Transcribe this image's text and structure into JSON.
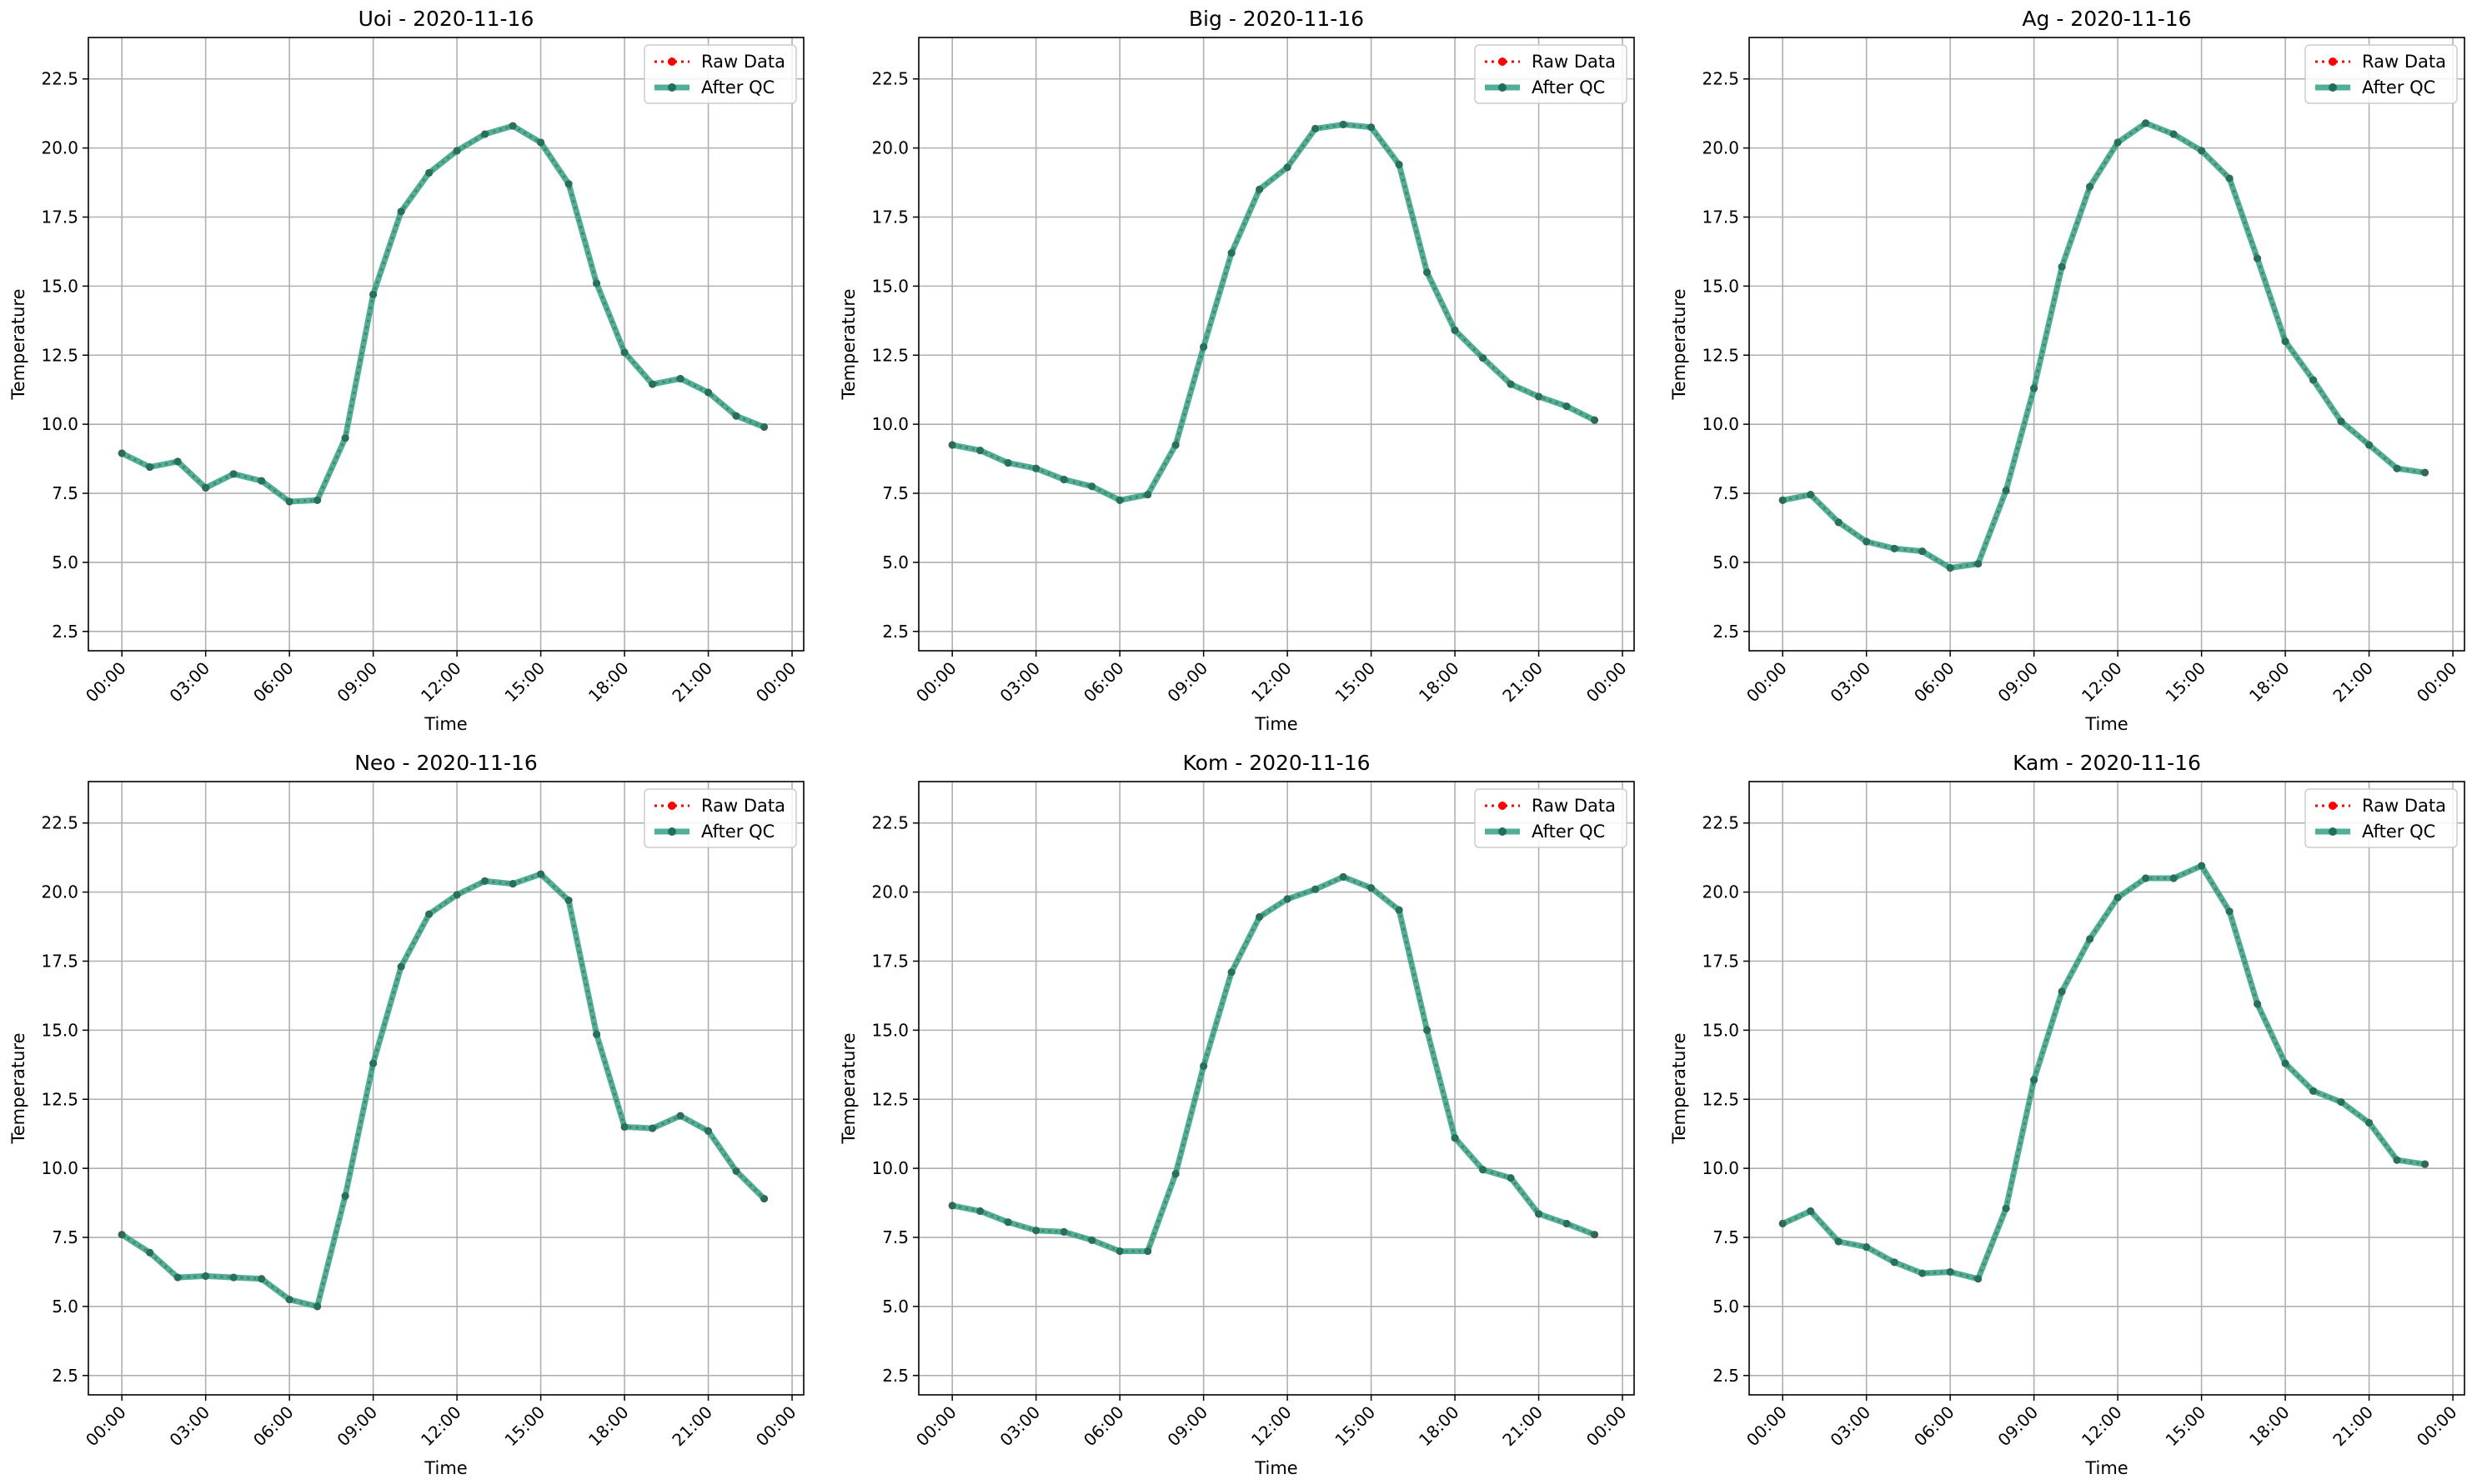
{
  "chart_data": [
    {
      "type": "line",
      "title": "Uoi - 2020-11-16",
      "xlabel": "Time",
      "ylabel": "Temperature",
      "ylim": [
        1.8,
        24.0
      ],
      "xlim": [
        "2020-11-15T22:48",
        "2020-11-17T00:25"
      ],
      "x_ticks": [
        "00:00",
        "03:00",
        "06:00",
        "09:00",
        "12:00",
        "15:00",
        "18:00",
        "21:00",
        "00:00"
      ],
      "y_ticks": [
        "2.5",
        "5.0",
        "7.5",
        "10.0",
        "12.5",
        "15.0",
        "17.5",
        "20.0",
        "22.5"
      ],
      "grid": true,
      "legend": "top-right",
      "x": [
        "00:00",
        "01:00",
        "02:00",
        "03:00",
        "04:00",
        "05:00",
        "06:00",
        "07:00",
        "08:00",
        "09:00",
        "10:00",
        "11:00",
        "12:00",
        "13:00",
        "14:00",
        "15:00",
        "16:00",
        "17:00",
        "18:00",
        "19:00",
        "20:00",
        "21:00",
        "22:00",
        "23:00"
      ],
      "series": [
        {
          "name": "Raw Data",
          "color": "#ff0000",
          "values": [
            8.95,
            8.45,
            8.65,
            7.7,
            8.2,
            7.95,
            7.2,
            7.25,
            9.5,
            14.7,
            17.7,
            19.1,
            19.9,
            20.5,
            20.8,
            20.2,
            18.7,
            15.1,
            12.6,
            11.45,
            11.65,
            11.15,
            10.3,
            9.9
          ]
        },
        {
          "name": "After QC",
          "color": "#2a9d7f",
          "values": [
            8.95,
            8.45,
            8.65,
            7.7,
            8.2,
            7.95,
            7.2,
            7.25,
            9.5,
            14.7,
            17.7,
            19.1,
            19.9,
            20.5,
            20.8,
            20.2,
            18.7,
            15.1,
            12.6,
            11.45,
            11.65,
            11.15,
            10.3,
            9.9
          ]
        }
      ]
    },
    {
      "type": "line",
      "title": "Big - 2020-11-16",
      "xlabel": "Time",
      "ylabel": "Temperature",
      "ylim": [
        1.8,
        24.0
      ],
      "xlim": [
        "2020-11-15T22:48",
        "2020-11-17T00:25"
      ],
      "x_ticks": [
        "00:00",
        "03:00",
        "06:00",
        "09:00",
        "12:00",
        "15:00",
        "18:00",
        "21:00",
        "00:00"
      ],
      "y_ticks": [
        "2.5",
        "5.0",
        "7.5",
        "10.0",
        "12.5",
        "15.0",
        "17.5",
        "20.0",
        "22.5"
      ],
      "grid": true,
      "legend": "top-right",
      "x": [
        "00:00",
        "01:00",
        "02:00",
        "03:00",
        "04:00",
        "05:00",
        "06:00",
        "07:00",
        "08:00",
        "09:00",
        "10:00",
        "11:00",
        "12:00",
        "13:00",
        "14:00",
        "15:00",
        "16:00",
        "17:00",
        "18:00",
        "19:00",
        "20:00",
        "21:00",
        "22:00",
        "23:00"
      ],
      "series": [
        {
          "name": "Raw Data",
          "color": "#ff0000",
          "values": [
            9.25,
            9.05,
            8.6,
            8.4,
            8.0,
            7.75,
            7.25,
            7.45,
            9.25,
            12.8,
            16.2,
            18.5,
            19.3,
            20.7,
            20.85,
            20.75,
            19.4,
            15.5,
            13.4,
            12.4,
            11.45,
            11.0,
            10.65,
            10.15
          ]
        },
        {
          "name": "After QC",
          "color": "#2a9d7f",
          "values": [
            9.25,
            9.05,
            8.6,
            8.4,
            8.0,
            7.75,
            7.25,
            7.45,
            9.25,
            12.8,
            16.2,
            18.5,
            19.3,
            20.7,
            20.85,
            20.75,
            19.4,
            15.5,
            13.4,
            12.4,
            11.45,
            11.0,
            10.65,
            10.15
          ]
        }
      ]
    },
    {
      "type": "line",
      "title": "Ag - 2020-11-16",
      "xlabel": "Time",
      "ylabel": "Temperature",
      "ylim": [
        1.8,
        24.0
      ],
      "xlim": [
        "2020-11-15T22:48",
        "2020-11-17T00:25"
      ],
      "x_ticks": [
        "00:00",
        "03:00",
        "06:00",
        "09:00",
        "12:00",
        "15:00",
        "18:00",
        "21:00",
        "00:00"
      ],
      "y_ticks": [
        "2.5",
        "5.0",
        "7.5",
        "10.0",
        "12.5",
        "15.0",
        "17.5",
        "20.0",
        "22.5"
      ],
      "grid": true,
      "legend": "top-right",
      "x": [
        "00:00",
        "01:00",
        "02:00",
        "03:00",
        "04:00",
        "05:00",
        "06:00",
        "07:00",
        "08:00",
        "09:00",
        "10:00",
        "11:00",
        "12:00",
        "13:00",
        "14:00",
        "15:00",
        "16:00",
        "17:00",
        "18:00",
        "19:00",
        "20:00",
        "21:00",
        "22:00",
        "23:00"
      ],
      "series": [
        {
          "name": "Raw Data",
          "color": "#ff0000",
          "values": [
            7.25,
            7.45,
            6.45,
            5.75,
            5.5,
            5.4,
            4.8,
            4.95,
            7.6,
            11.3,
            15.7,
            18.6,
            20.2,
            20.9,
            20.5,
            19.9,
            18.9,
            16.0,
            13.0,
            11.6,
            10.1,
            9.25,
            8.4,
            8.25
          ]
        },
        {
          "name": "After QC",
          "color": "#2a9d7f",
          "values": [
            7.25,
            7.45,
            6.45,
            5.75,
            5.5,
            5.4,
            4.8,
            4.95,
            7.6,
            11.3,
            15.7,
            18.6,
            20.2,
            20.9,
            20.5,
            19.9,
            18.9,
            16.0,
            13.0,
            11.6,
            10.1,
            9.25,
            8.4,
            8.25
          ]
        }
      ]
    },
    {
      "type": "line",
      "title": "Neo - 2020-11-16",
      "xlabel": "Time",
      "ylabel": "Temperature",
      "ylim": [
        1.8,
        24.0
      ],
      "xlim": [
        "2020-11-15T22:48",
        "2020-11-17T00:25"
      ],
      "x_ticks": [
        "00:00",
        "03:00",
        "06:00",
        "09:00",
        "12:00",
        "15:00",
        "18:00",
        "21:00",
        "00:00"
      ],
      "y_ticks": [
        "2.5",
        "5.0",
        "7.5",
        "10.0",
        "12.5",
        "15.0",
        "17.5",
        "20.0",
        "22.5"
      ],
      "grid": true,
      "legend": "top-right",
      "x": [
        "00:00",
        "01:00",
        "02:00",
        "03:00",
        "04:00",
        "05:00",
        "06:00",
        "07:00",
        "08:00",
        "09:00",
        "10:00",
        "11:00",
        "12:00",
        "13:00",
        "14:00",
        "15:00",
        "16:00",
        "17:00",
        "18:00",
        "19:00",
        "20:00",
        "21:00",
        "22:00",
        "23:00"
      ],
      "series": [
        {
          "name": "Raw Data",
          "color": "#ff0000",
          "values": [
            7.6,
            6.95,
            6.05,
            6.1,
            6.05,
            6.0,
            5.25,
            5.0,
            9.0,
            13.8,
            17.3,
            19.2,
            19.9,
            20.4,
            20.3,
            20.65,
            19.7,
            14.85,
            11.5,
            11.45,
            11.9,
            11.35,
            9.9,
            8.9
          ]
        },
        {
          "name": "After QC",
          "color": "#2a9d7f",
          "values": [
            7.6,
            6.95,
            6.05,
            6.1,
            6.05,
            6.0,
            5.25,
            5.0,
            9.0,
            13.8,
            17.3,
            19.2,
            19.9,
            20.4,
            20.3,
            20.65,
            19.7,
            14.85,
            11.5,
            11.45,
            11.9,
            11.35,
            9.9,
            8.9
          ]
        }
      ]
    },
    {
      "type": "line",
      "title": "Kom - 2020-11-16",
      "xlabel": "Time",
      "ylabel": "Temperature",
      "ylim": [
        1.8,
        24.0
      ],
      "xlim": [
        "2020-11-15T22:48",
        "2020-11-17T00:25"
      ],
      "x_ticks": [
        "00:00",
        "03:00",
        "06:00",
        "09:00",
        "12:00",
        "15:00",
        "18:00",
        "21:00",
        "00:00"
      ],
      "y_ticks": [
        "2.5",
        "5.0",
        "7.5",
        "10.0",
        "12.5",
        "15.0",
        "17.5",
        "20.0",
        "22.5"
      ],
      "grid": true,
      "legend": "top-right",
      "x": [
        "00:00",
        "01:00",
        "02:00",
        "03:00",
        "04:00",
        "05:00",
        "06:00",
        "07:00",
        "08:00",
        "09:00",
        "10:00",
        "11:00",
        "12:00",
        "13:00",
        "14:00",
        "15:00",
        "16:00",
        "17:00",
        "18:00",
        "19:00",
        "20:00",
        "21:00",
        "22:00",
        "23:00"
      ],
      "series": [
        {
          "name": "Raw Data",
          "color": "#ff0000",
          "values": [
            8.65,
            8.45,
            8.05,
            7.75,
            7.7,
            7.4,
            7.0,
            7.0,
            9.8,
            13.7,
            17.1,
            19.1,
            19.75,
            20.1,
            20.55,
            20.15,
            19.35,
            15.0,
            11.1,
            9.95,
            9.65,
            8.35,
            8.0,
            7.6
          ]
        },
        {
          "name": "After QC",
          "color": "#2a9d7f",
          "values": [
            8.65,
            8.45,
            8.05,
            7.75,
            7.7,
            7.4,
            7.0,
            7.0,
            9.8,
            13.7,
            17.1,
            19.1,
            19.75,
            20.1,
            20.55,
            20.15,
            19.35,
            15.0,
            11.1,
            9.95,
            9.65,
            8.35,
            8.0,
            7.6
          ]
        }
      ]
    },
    {
      "type": "line",
      "title": "Kam - 2020-11-16",
      "xlabel": "Time",
      "ylabel": "Temperature",
      "ylim": [
        1.8,
        24.0
      ],
      "xlim": [
        "2020-11-15T22:48",
        "2020-11-17T00:25"
      ],
      "x_ticks": [
        "00:00",
        "03:00",
        "06:00",
        "09:00",
        "12:00",
        "15:00",
        "18:00",
        "21:00",
        "00:00"
      ],
      "y_ticks": [
        "2.5",
        "5.0",
        "7.5",
        "10.0",
        "12.5",
        "15.0",
        "17.5",
        "20.0",
        "22.5"
      ],
      "grid": true,
      "legend": "top-right",
      "x": [
        "00:00",
        "01:00",
        "02:00",
        "03:00",
        "04:00",
        "05:00",
        "06:00",
        "07:00",
        "08:00",
        "09:00",
        "10:00",
        "11:00",
        "12:00",
        "13:00",
        "14:00",
        "15:00",
        "16:00",
        "17:00",
        "18:00",
        "19:00",
        "20:00",
        "21:00",
        "22:00",
        "23:00"
      ],
      "series": [
        {
          "name": "Raw Data",
          "color": "#ff0000",
          "values": [
            8.0,
            8.45,
            7.35,
            7.15,
            6.6,
            6.2,
            6.25,
            6.0,
            8.55,
            13.2,
            16.4,
            18.3,
            19.8,
            20.5,
            20.5,
            20.95,
            19.3,
            15.95,
            13.8,
            12.8,
            12.4,
            11.65,
            10.3,
            10.15
          ]
        },
        {
          "name": "After QC",
          "color": "#2a9d7f",
          "values": [
            8.0,
            8.45,
            7.35,
            7.15,
            6.6,
            6.2,
            6.25,
            6.0,
            8.55,
            13.2,
            16.4,
            18.3,
            19.8,
            20.5,
            20.5,
            20.95,
            19.3,
            15.95,
            13.8,
            12.8,
            12.4,
            11.65,
            10.3,
            10.15
          ]
        }
      ]
    }
  ]
}
